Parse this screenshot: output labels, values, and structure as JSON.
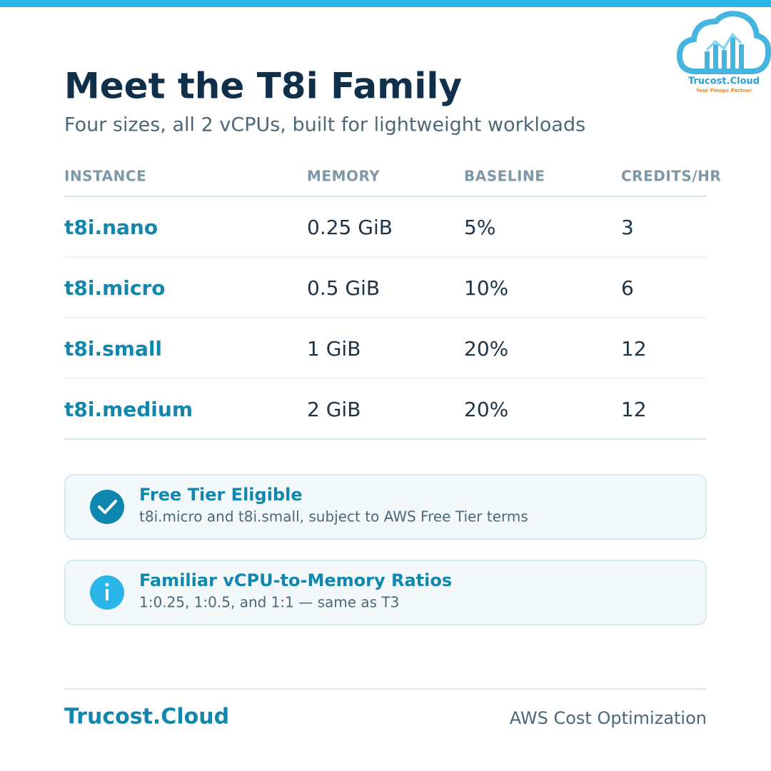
{
  "logo": {
    "name": "Trucost.Cloud",
    "tagline": "Your Finops Partner"
  },
  "header": {
    "title": "Meet the T8i Family",
    "subtitle": "Four sizes, all 2 vCPUs, built for lightweight workloads"
  },
  "table": {
    "columns": [
      "INSTANCE",
      "MEMORY",
      "BASELINE",
      "CREDITS/HR"
    ],
    "rows": [
      [
        "t8i.nano",
        "0.25 GiB",
        "5%",
        "3"
      ],
      [
        "t8i.micro",
        "0.5 GiB",
        "10%",
        "6"
      ],
      [
        "t8i.small",
        "1 GiB",
        "20%",
        "12"
      ],
      [
        "t8i.medium",
        "2 GiB",
        "20%",
        "12"
      ]
    ]
  },
  "callouts": [
    {
      "title": "Free Tier Eligible",
      "text": "t8i.micro and t8i.small, subject to AWS Free Tier terms"
    },
    {
      "title": "Familiar vCPU-to-Memory Ratios",
      "text": "1:0.25, 1:0.5, and 1:1 — same as T3"
    }
  ],
  "footer": {
    "brand": "Trucost.Cloud",
    "tagline": "AWS Cost Optimization"
  }
}
